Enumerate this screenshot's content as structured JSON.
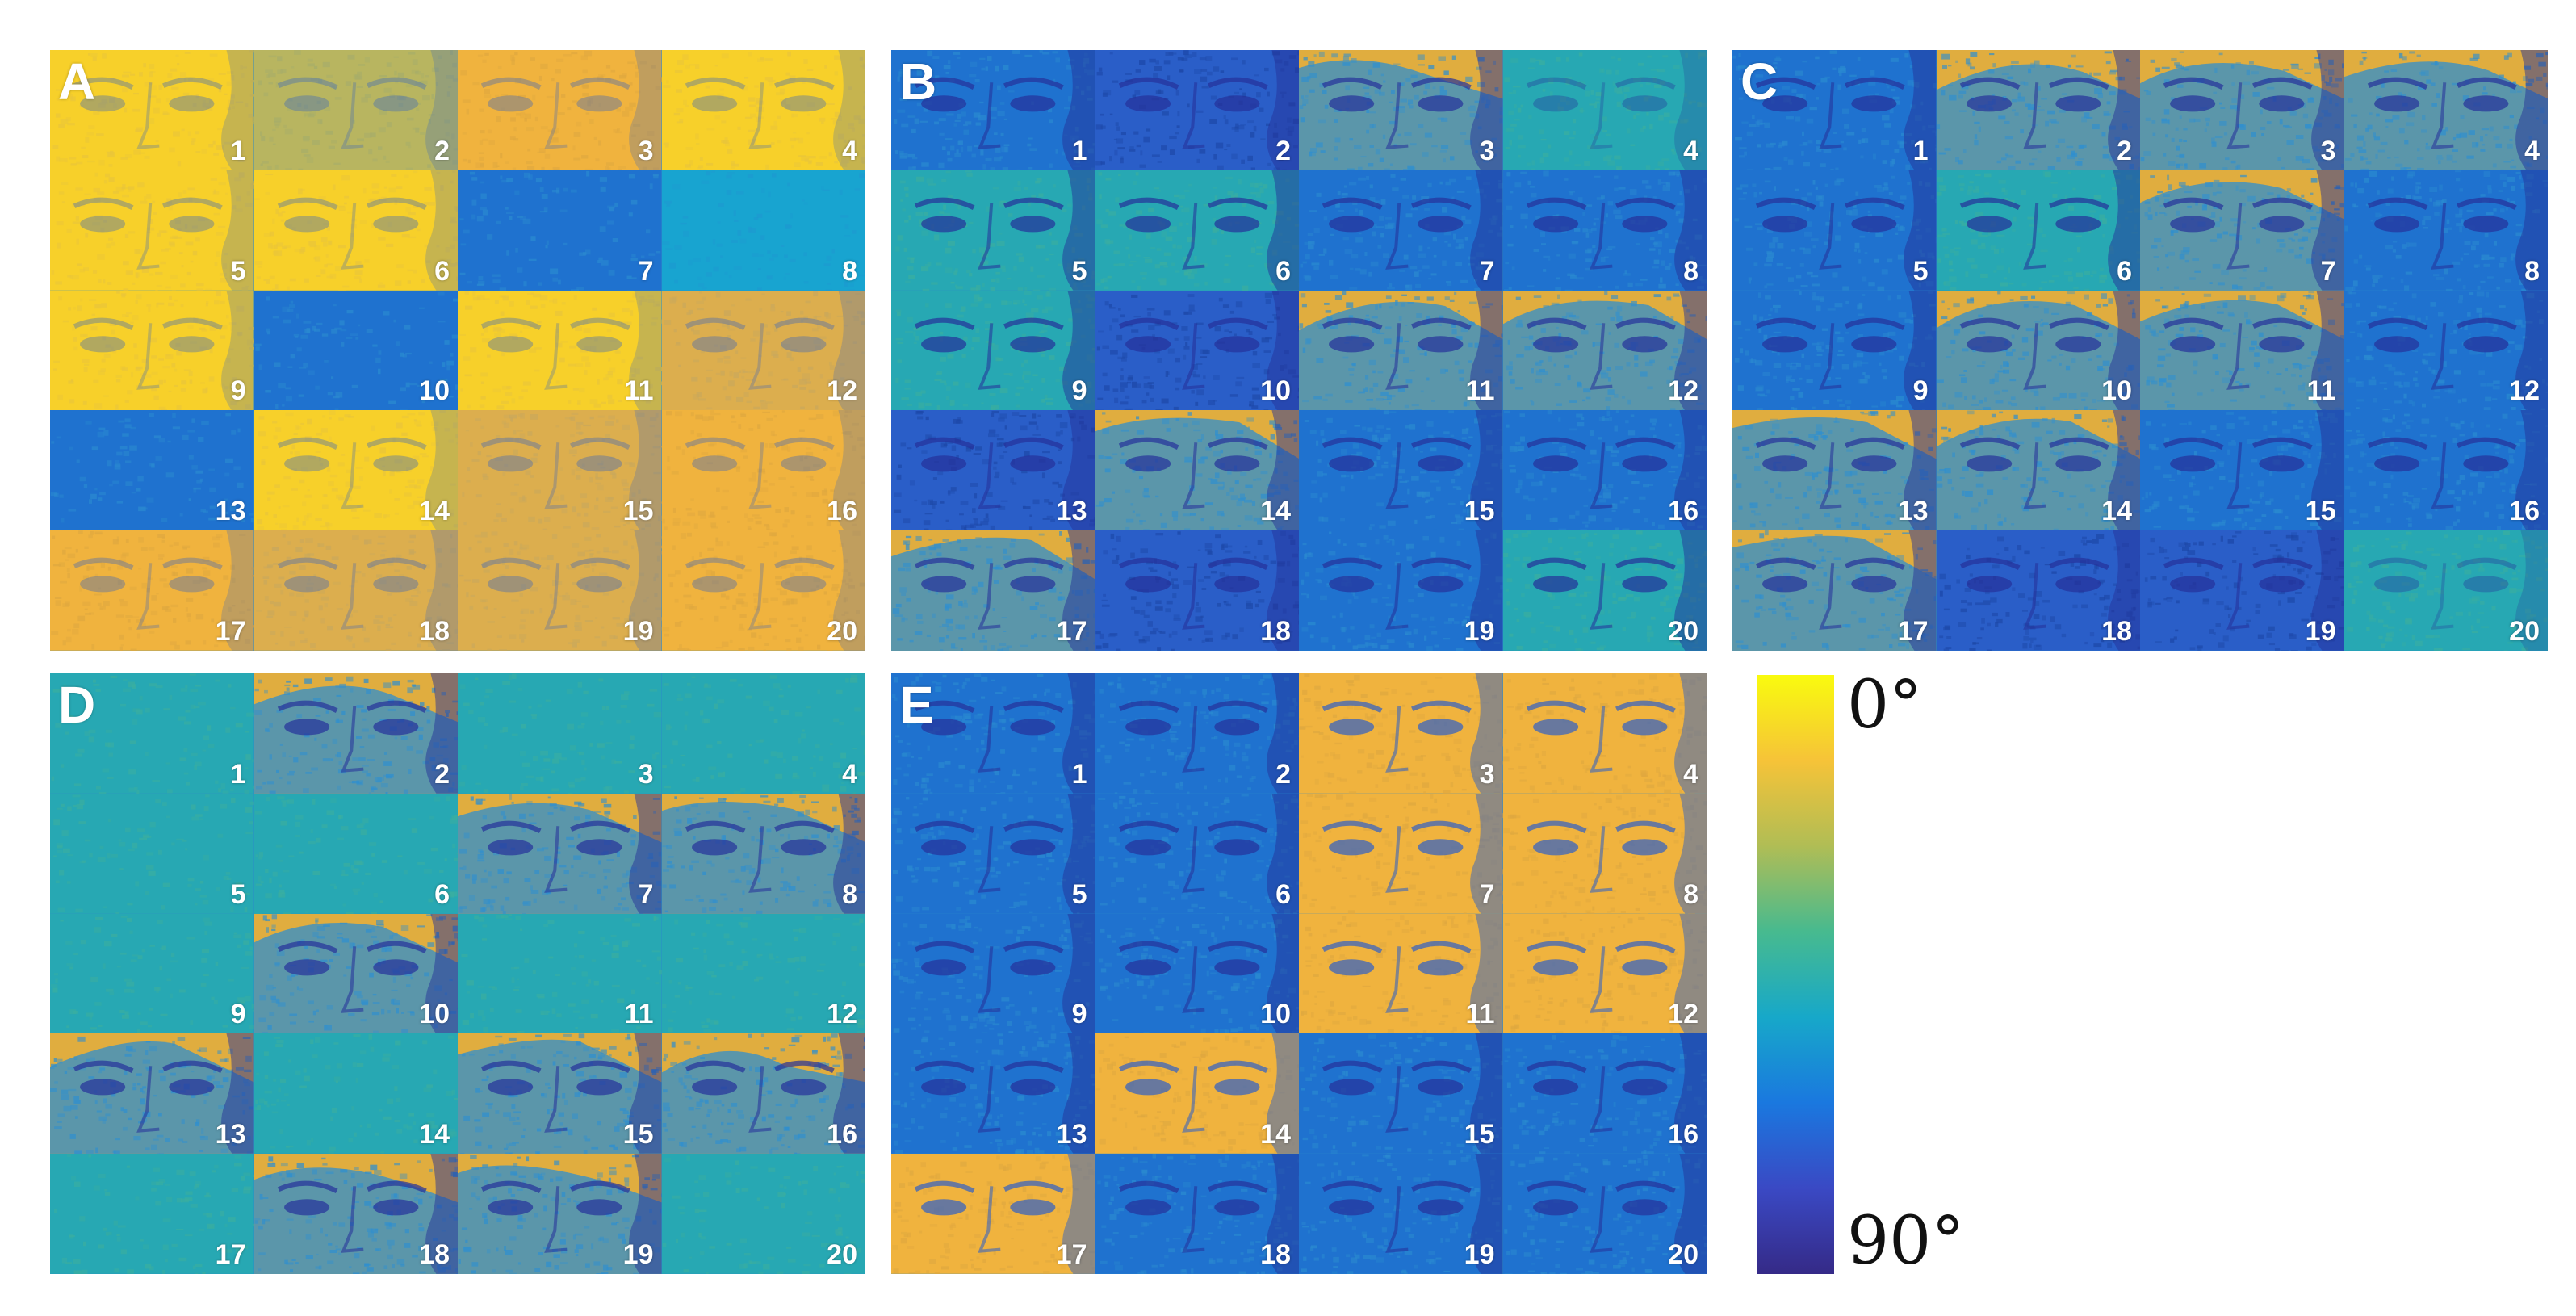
{
  "panels": [
    {
      "id": "A",
      "label": "A",
      "tiles": [
        {
          "n": "1",
          "tone": "yellow",
          "features": "faint"
        },
        {
          "n": "2",
          "tone": "olive",
          "features": "faint"
        },
        {
          "n": "3",
          "tone": "orange",
          "features": "faint"
        },
        {
          "n": "4",
          "tone": "yellow",
          "features": "faint"
        },
        {
          "n": "5",
          "tone": "yellow",
          "features": "faint"
        },
        {
          "n": "6",
          "tone": "yellow",
          "features": "faint"
        },
        {
          "n": "7",
          "tone": "blue",
          "features": "none"
        },
        {
          "n": "8",
          "tone": "cyan",
          "features": "none"
        },
        {
          "n": "9",
          "tone": "yellow",
          "features": "faint"
        },
        {
          "n": "10",
          "tone": "blue",
          "features": "none"
        },
        {
          "n": "11",
          "tone": "yellow",
          "features": "faint"
        },
        {
          "n": "12",
          "tone": "tan",
          "features": "faint"
        },
        {
          "n": "13",
          "tone": "blue",
          "features": "none"
        },
        {
          "n": "14",
          "tone": "yellow",
          "features": "faint"
        },
        {
          "n": "15",
          "tone": "tan",
          "features": "faint"
        },
        {
          "n": "16",
          "tone": "orange",
          "features": "faint"
        },
        {
          "n": "17",
          "tone": "orange",
          "features": "faint"
        },
        {
          "n": "18",
          "tone": "tan",
          "features": "faint"
        },
        {
          "n": "19",
          "tone": "tan",
          "features": "faint"
        },
        {
          "n": "20",
          "tone": "orange",
          "features": "faint"
        }
      ]
    },
    {
      "id": "B",
      "label": "B",
      "tiles": [
        {
          "n": "1",
          "tone": "blue",
          "features": "eyes"
        },
        {
          "n": "2",
          "tone": "deepblue",
          "features": "eyes"
        },
        {
          "n": "3",
          "tone": "mixed",
          "features": "eyes"
        },
        {
          "n": "4",
          "tone": "teal",
          "features": "faint"
        },
        {
          "n": "5",
          "tone": "teal",
          "features": "eyes"
        },
        {
          "n": "6",
          "tone": "teal",
          "features": "eyes"
        },
        {
          "n": "7",
          "tone": "blue",
          "features": "eyes"
        },
        {
          "n": "8",
          "tone": "blue",
          "features": "eyes"
        },
        {
          "n": "9",
          "tone": "teal",
          "features": "eyes"
        },
        {
          "n": "10",
          "tone": "deepblue",
          "features": "eyes"
        },
        {
          "n": "11",
          "tone": "mixed",
          "features": "eyes"
        },
        {
          "n": "12",
          "tone": "mixed",
          "features": "eyes"
        },
        {
          "n": "13",
          "tone": "deepblue",
          "features": "eyes"
        },
        {
          "n": "14",
          "tone": "mixed",
          "features": "eyes"
        },
        {
          "n": "15",
          "tone": "blue",
          "features": "eyes"
        },
        {
          "n": "16",
          "tone": "blue",
          "features": "eyes"
        },
        {
          "n": "17",
          "tone": "mixed",
          "features": "eyes"
        },
        {
          "n": "18",
          "tone": "deepblue",
          "features": "eyes"
        },
        {
          "n": "19",
          "tone": "blue",
          "features": "eyes"
        },
        {
          "n": "20",
          "tone": "teal",
          "features": "eyes"
        }
      ]
    },
    {
      "id": "C",
      "label": "C",
      "tiles": [
        {
          "n": "1",
          "tone": "blue",
          "features": "eyes"
        },
        {
          "n": "2",
          "tone": "mixed",
          "features": "eyes"
        },
        {
          "n": "3",
          "tone": "mixed",
          "features": "eyes"
        },
        {
          "n": "4",
          "tone": "mixed",
          "features": "eyes"
        },
        {
          "n": "5",
          "tone": "blue",
          "features": "eyes"
        },
        {
          "n": "6",
          "tone": "teal",
          "features": "eyes"
        },
        {
          "n": "7",
          "tone": "mixed",
          "features": "eyes"
        },
        {
          "n": "8",
          "tone": "blue",
          "features": "eyes"
        },
        {
          "n": "9",
          "tone": "blue",
          "features": "eyes"
        },
        {
          "n": "10",
          "tone": "mixed",
          "features": "eyes"
        },
        {
          "n": "11",
          "tone": "mixed",
          "features": "eyes"
        },
        {
          "n": "12",
          "tone": "blue",
          "features": "eyes"
        },
        {
          "n": "13",
          "tone": "mixed",
          "features": "eyes"
        },
        {
          "n": "14",
          "tone": "mixed",
          "features": "eyes"
        },
        {
          "n": "15",
          "tone": "blue",
          "features": "eyes"
        },
        {
          "n": "16",
          "tone": "blue",
          "features": "eyes"
        },
        {
          "n": "17",
          "tone": "mixed",
          "features": "eyes"
        },
        {
          "n": "18",
          "tone": "deepblue",
          "features": "eyes"
        },
        {
          "n": "19",
          "tone": "deepblue",
          "features": "eyes"
        },
        {
          "n": "20",
          "tone": "teal",
          "features": "faint"
        }
      ]
    },
    {
      "id": "D",
      "label": "D",
      "tiles": [
        {
          "n": "1",
          "tone": "teal",
          "features": "none"
        },
        {
          "n": "2",
          "tone": "mixed",
          "features": "eyes"
        },
        {
          "n": "3",
          "tone": "teal",
          "features": "none"
        },
        {
          "n": "4",
          "tone": "teal",
          "features": "none"
        },
        {
          "n": "5",
          "tone": "teal",
          "features": "none"
        },
        {
          "n": "6",
          "tone": "teal",
          "features": "none"
        },
        {
          "n": "7",
          "tone": "mixed",
          "features": "eyes"
        },
        {
          "n": "8",
          "tone": "mixed",
          "features": "eyes"
        },
        {
          "n": "9",
          "tone": "teal",
          "features": "none"
        },
        {
          "n": "10",
          "tone": "mixed",
          "features": "eyes"
        },
        {
          "n": "11",
          "tone": "teal",
          "features": "none"
        },
        {
          "n": "12",
          "tone": "teal",
          "features": "none"
        },
        {
          "n": "13",
          "tone": "mixed",
          "features": "eyes"
        },
        {
          "n": "14",
          "tone": "teal",
          "features": "none"
        },
        {
          "n": "15",
          "tone": "mixed",
          "features": "eyes"
        },
        {
          "n": "16",
          "tone": "mixed",
          "features": "eyes"
        },
        {
          "n": "17",
          "tone": "teal",
          "features": "none"
        },
        {
          "n": "18",
          "tone": "mixed",
          "features": "eyes"
        },
        {
          "n": "19",
          "tone": "mixed",
          "features": "eyes"
        },
        {
          "n": "20",
          "tone": "teal",
          "features": "none"
        }
      ]
    },
    {
      "id": "E",
      "label": "E",
      "tiles": [
        {
          "n": "1",
          "tone": "blue",
          "features": "eyes"
        },
        {
          "n": "2",
          "tone": "blue",
          "features": "eyes"
        },
        {
          "n": "3",
          "tone": "orange",
          "features": "eyes"
        },
        {
          "n": "4",
          "tone": "orange",
          "features": "eyes"
        },
        {
          "n": "5",
          "tone": "blue",
          "features": "eyes"
        },
        {
          "n": "6",
          "tone": "blue",
          "features": "eyes"
        },
        {
          "n": "7",
          "tone": "orange",
          "features": "eyes"
        },
        {
          "n": "8",
          "tone": "orange",
          "features": "eyes"
        },
        {
          "n": "9",
          "tone": "blue",
          "features": "eyes"
        },
        {
          "n": "10",
          "tone": "blue",
          "features": "eyes"
        },
        {
          "n": "11",
          "tone": "orange",
          "features": "eyes"
        },
        {
          "n": "12",
          "tone": "orange",
          "features": "eyes"
        },
        {
          "n": "13",
          "tone": "blue",
          "features": "eyes"
        },
        {
          "n": "14",
          "tone": "orange",
          "features": "eyes"
        },
        {
          "n": "15",
          "tone": "blue",
          "features": "eyes"
        },
        {
          "n": "16",
          "tone": "blue",
          "features": "eyes"
        },
        {
          "n": "17",
          "tone": "orange",
          "features": "eyes"
        },
        {
          "n": "18",
          "tone": "blue",
          "features": "eyes"
        },
        {
          "n": "19",
          "tone": "blue",
          "features": "eyes"
        },
        {
          "n": "20",
          "tone": "blue",
          "features": "eyes"
        }
      ]
    }
  ],
  "tones": {
    "yellow": {
      "base": "#f7d02a",
      "alt": "#e9c53a"
    },
    "orange": {
      "base": "#f0b33e",
      "alt": "#dfa83f"
    },
    "olive": {
      "base": "#b8b560",
      "alt": "#a6ad6a"
    },
    "tan": {
      "base": "#dcae4e",
      "alt": "#c9a85c"
    },
    "blue": {
      "base": "#1f72cf",
      "alt": "#2a8ad0"
    },
    "deepblue": {
      "base": "#2a5ec8",
      "alt": "#1d48a8"
    },
    "cyan": {
      "base": "#18a4d0",
      "alt": "#1d9ad0"
    },
    "teal": {
      "base": "#27a8b3",
      "alt": "#3aaea0"
    },
    "mixed": {
      "base": "#e0ad3f",
      "alt": "#2f8fcf"
    }
  },
  "colorbar": {
    "top_label": "0°",
    "bottom_label": "90°",
    "stops": [
      "#f9fb0e",
      "#f6c338",
      "#b0bd55",
      "#47ba8f",
      "#17a8c9",
      "#1a78df",
      "#3a49c4",
      "#352a87"
    ]
  }
}
